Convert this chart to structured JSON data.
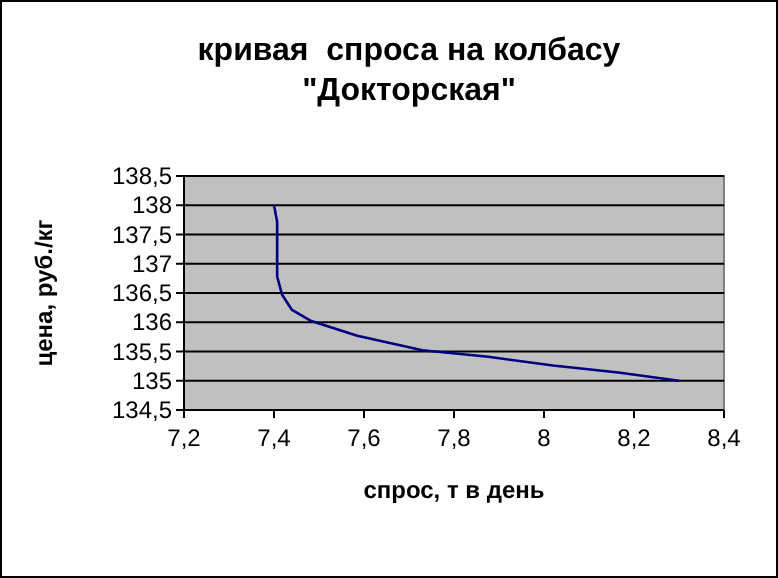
{
  "chart_data": {
    "type": "line",
    "title": "кривая  спроса на колбасу\n\"Докторская\"",
    "xlabel": "спрос, т в день",
    "ylabel": "цена, руб./кг",
    "series": [
      {
        "color": "#000080",
        "x": [
          7.4,
          7.407,
          7.407,
          7.418,
          7.44,
          7.483,
          7.585,
          7.73,
          7.876,
          8.02,
          8.165,
          8.3
        ],
        "values": [
          138,
          137.72,
          136.78,
          136.47,
          136.21,
          136.02,
          135.77,
          135.52,
          135.41,
          135.26,
          135.14,
          135.0
        ]
      }
    ],
    "xlim": [
      7.2,
      8.4
    ],
    "xticks": [
      {
        "value": 7.2,
        "label": "7,2"
      },
      {
        "value": 7.4,
        "label": "7,4"
      },
      {
        "value": 7.6,
        "label": "7,6"
      },
      {
        "value": 7.8,
        "label": "7,8"
      },
      {
        "value": 8,
        "label": "8"
      },
      {
        "value": 8.2,
        "label": "8,2"
      },
      {
        "value": 8.4,
        "label": "8,4"
      }
    ],
    "ylim": [
      134.5,
      138.5
    ],
    "yticks": [
      {
        "value": 134.5,
        "label": "134,5"
      },
      {
        "value": 135,
        "label": "135"
      },
      {
        "value": 135.5,
        "label": "135,5"
      },
      {
        "value": 136,
        "label": "136"
      },
      {
        "value": 136.5,
        "label": "136,5"
      },
      {
        "value": 137,
        "label": "137"
      },
      {
        "value": 137.5,
        "label": "137,5"
      },
      {
        "value": 138,
        "label": "138"
      },
      {
        "value": 138.5,
        "label": "138,5"
      }
    ],
    "grid": "y",
    "marker": "none",
    "line_style": "solid"
  }
}
